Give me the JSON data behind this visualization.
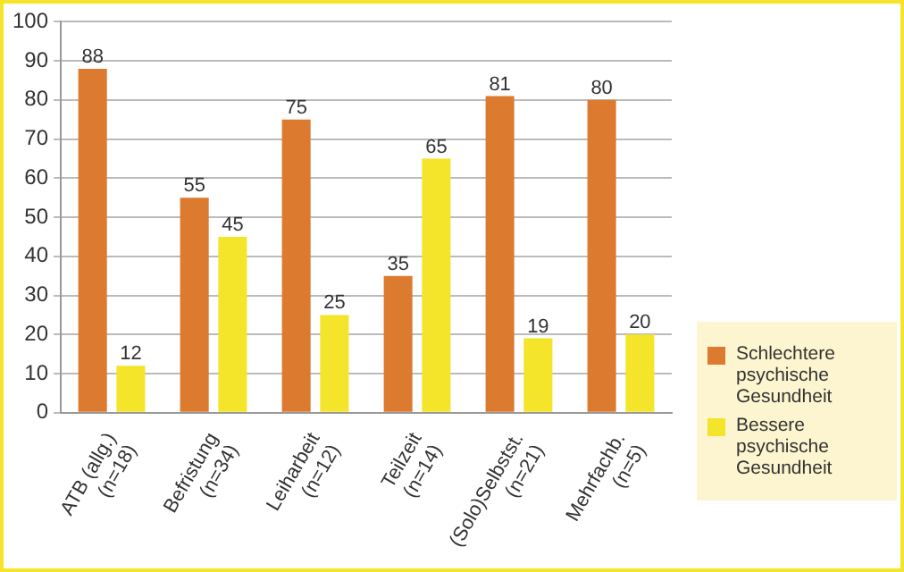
{
  "chart_data": {
    "type": "bar",
    "categories": [
      "ATB (allg.) (n=18)",
      "Befristung (n=34)",
      "Leiharbeit (n=12)",
      "Teilzeit (n=14)",
      "(Solo)Selbstst. (n=21)",
      "Mehrfachb. (n=5)"
    ],
    "series": [
      {
        "name": "Schlechtere psychische Gesundheit",
        "color": "#dc7a2f",
        "values": [
          88,
          55,
          75,
          35,
          81,
          80
        ]
      },
      {
        "name": "Bessere psychische Gesundheit",
        "color": "#f4e42a",
        "values": [
          12,
          45,
          25,
          65,
          19,
          20
        ]
      }
    ],
    "ylim": [
      0,
      100
    ],
    "yticks": [
      0,
      10,
      20,
      30,
      40,
      50,
      60,
      70,
      80,
      90,
      100
    ],
    "grid": "y",
    "legend": "right",
    "data_labels": true
  }
}
